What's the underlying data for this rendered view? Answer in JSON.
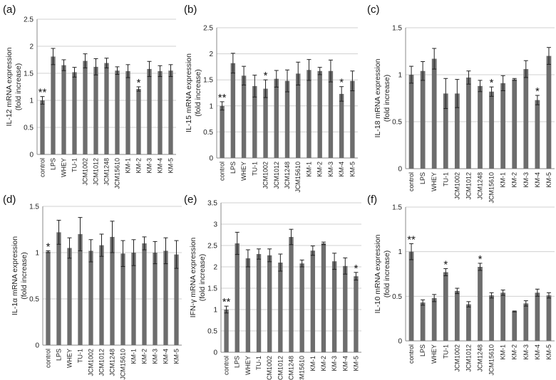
{
  "figure": {
    "categories": [
      "control",
      "LPS",
      "WHEY",
      "TU-1",
      "JCM1002",
      "JCM1012",
      "JCM1248",
      "JCM15610",
      "KM-1",
      "KM-2",
      "KM-3",
      "KM-4",
      "KM-5"
    ]
  },
  "colors": {
    "bar": "#6d6d6d",
    "grid": "#d0d0d0",
    "axis": "#8a8a8a",
    "error": "#222222"
  },
  "chart_data": [
    {
      "id": "a",
      "type": "bar",
      "panel_label": "(a)",
      "ylabel": [
        "IL-12 mRNA expression",
        "(fold increase)"
      ],
      "ylim": [
        0,
        2.5
      ],
      "yticks": [
        "0",
        "0.5",
        "1",
        "1.5",
        "2",
        "2.5"
      ],
      "grid": true,
      "values": [
        1.0,
        1.81,
        1.65,
        1.52,
        1.73,
        1.62,
        1.69,
        1.55,
        1.54,
        1.21,
        1.58,
        1.54,
        1.55
      ],
      "errors": [
        0.07,
        0.15,
        0.1,
        0.09,
        0.13,
        0.15,
        0.09,
        0.07,
        0.12,
        0.04,
        0.14,
        0.1,
        0.11
      ],
      "stars": [
        "**",
        "",
        "",
        "",
        "",
        "",
        "",
        "",
        "",
        "*",
        "",
        "",
        ""
      ]
    },
    {
      "id": "b",
      "type": "bar",
      "panel_label": "(b)",
      "ylabel": [
        "IL-15 mRNA expression",
        "(fold increase)"
      ],
      "ylim": [
        0,
        2.5
      ],
      "yticks": [
        "0",
        "0.5",
        "1",
        "1.5",
        "2",
        "2.5"
      ],
      "grid": true,
      "values": [
        1.0,
        1.82,
        1.58,
        1.38,
        1.33,
        1.52,
        1.48,
        1.62,
        1.69,
        1.67,
        1.67,
        1.23,
        1.48
      ],
      "errors": [
        0.08,
        0.19,
        0.18,
        0.21,
        0.17,
        0.16,
        0.21,
        0.22,
        0.2,
        0.07,
        0.21,
        0.14,
        0.19
      ],
      "stars": [
        "**",
        "",
        "",
        "",
        "*",
        "",
        "",
        "",
        "",
        "",
        "",
        "*",
        ""
      ]
    },
    {
      "id": "c",
      "type": "bar",
      "panel_label": "(c)",
      "ylabel": [
        "IL-18 mRNA expression",
        "(fold increase)"
      ],
      "ylim": [
        0,
        1.5
      ],
      "yticks": [
        "0",
        "0.5",
        "1",
        "1.5"
      ],
      "grid": true,
      "values": [
        1.0,
        1.04,
        1.17,
        0.8,
        0.8,
        0.97,
        0.88,
        0.82,
        0.91,
        0.95,
        1.06,
        0.73,
        1.2
      ],
      "errors": [
        0.09,
        0.1,
        0.11,
        0.16,
        0.15,
        0.07,
        0.06,
        0.05,
        0.08,
        0.01,
        0.09,
        0.05,
        0.09
      ],
      "stars": [
        "",
        "",
        "",
        "",
        "",
        "",
        "",
        "*",
        "",
        "",
        "",
        "*",
        ""
      ]
    },
    {
      "id": "d",
      "type": "bar",
      "panel_label": "(d)",
      "ylabel": [
        "IL-1α mRNA expression",
        "(fold increase)"
      ],
      "ylim": [
        0,
        1.5
      ],
      "yticks": [
        "0",
        "0.5",
        "1",
        "1.5"
      ],
      "grid": true,
      "values": [
        1.01,
        1.22,
        1.05,
        1.2,
        1.02,
        1.08,
        1.17,
        0.99,
        1.0,
        1.1,
        1.0,
        1.02,
        0.98
      ],
      "errors": [
        0.01,
        0.13,
        0.11,
        0.18,
        0.12,
        0.12,
        0.17,
        0.14,
        0.14,
        0.07,
        0.12,
        0.14,
        0.15
      ],
      "stars": [
        "*",
        "",
        "",
        "",
        "",
        "",
        "",
        "",
        "",
        "",
        "",
        "",
        ""
      ]
    },
    {
      "id": "e",
      "type": "bar",
      "panel_label": "(e)",
      "ylabel": [
        "IFN-γ mRNA expression",
        "(fold increase)"
      ],
      "ylim": [
        0,
        3.5
      ],
      "yticks": [
        "0",
        "0.5",
        "1",
        "1.5",
        "2",
        "2.5",
        "3",
        "3.5"
      ],
      "grid": true,
      "values": [
        1.0,
        2.55,
        2.2,
        2.3,
        2.27,
        2.1,
        2.7,
        2.08,
        2.38,
        2.55,
        2.13,
        2.02,
        1.78
      ],
      "errors": [
        0.08,
        0.26,
        0.2,
        0.12,
        0.15,
        0.2,
        0.18,
        0.08,
        0.11,
        0.03,
        0.19,
        0.19,
        0.09
      ],
      "stars": [
        "**",
        "",
        "",
        "",
        "",
        "",
        "",
        "",
        "",
        "",
        "",
        "",
        "*"
      ]
    },
    {
      "id": "f",
      "type": "bar",
      "panel_label": "(f)",
      "ylabel": [
        "IL-10 mRNA expression",
        "(fold increase)"
      ],
      "ylim": [
        0,
        1.5
      ],
      "yticks": [
        "0",
        "0.5",
        "1",
        "1.5"
      ],
      "grid": true,
      "values": [
        1.0,
        0.43,
        0.48,
        0.77,
        0.56,
        0.41,
        0.83,
        0.51,
        0.54,
        0.33,
        0.42,
        0.54,
        0.51
      ],
      "errors": [
        0.09,
        0.03,
        0.04,
        0.04,
        0.03,
        0.03,
        0.04,
        0.03,
        0.03,
        0.005,
        0.03,
        0.04,
        0.03
      ],
      "stars": [
        "**",
        "",
        "",
        "*",
        "",
        "",
        "*",
        "",
        "",
        "",
        "",
        "",
        ""
      ]
    }
  ]
}
